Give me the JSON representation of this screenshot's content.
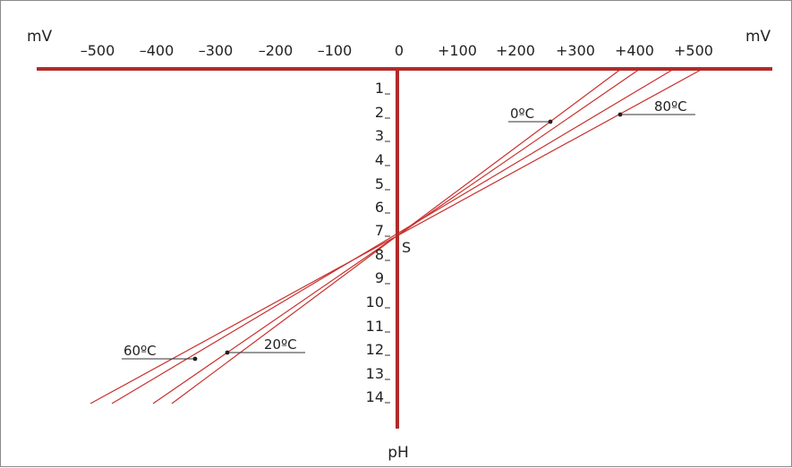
{
  "diagram": {
    "x_unit_left": "mV",
    "x_unit_right": "mV",
    "y_label": "pH",
    "x_ticks": [
      "–500",
      "–400",
      "–300",
      "–200",
      "–100",
      "0",
      "+100",
      "+200",
      "+300",
      "+400",
      "+500"
    ],
    "y_ticks": [
      "1",
      "2",
      "3",
      "4",
      "5",
      "6",
      "7",
      "8",
      "9",
      "10",
      "11",
      "12",
      "13",
      "14"
    ],
    "isopotential_point": "S",
    "temperature_labels": {
      "t0": "0ºC",
      "t20": "20ºC",
      "t60": "60ºC",
      "t80": "80ºC"
    },
    "colors": {
      "axis": "#b22a2a",
      "lines": "#c8302c",
      "text": "#222222",
      "frame": "#8a8a8a"
    }
  }
}
